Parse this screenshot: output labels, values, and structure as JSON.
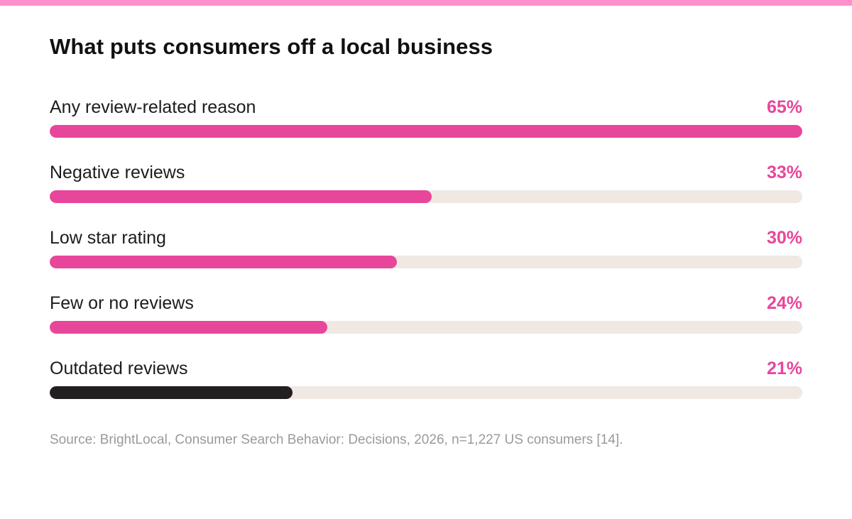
{
  "chart_data": {
    "type": "bar",
    "orientation": "horizontal",
    "title": "What puts consumers off a local business",
    "categories": [
      "Any review-related reason",
      "Negative reviews",
      "Low star rating",
      "Few or no reviews",
      "Outdated reviews"
    ],
    "values": [
      65,
      33,
      30,
      24,
      21
    ],
    "value_labels": [
      "65%",
      "33%",
      "30%",
      "24%",
      "21%"
    ],
    "xlim": [
      0,
      65
    ],
    "grid": false,
    "legend": "none",
    "colors": {
      "primary": "#e8469b",
      "highlight": "#231f20",
      "track": "#efe8e3"
    },
    "highlight_index": 4
  },
  "footer": {
    "source": "Source: BrightLocal, Consumer Search Behavior: Decisions, 2026, n=1,227 US consumers [14]."
  },
  "theme": {
    "accent_strip": "#ff90cc"
  }
}
